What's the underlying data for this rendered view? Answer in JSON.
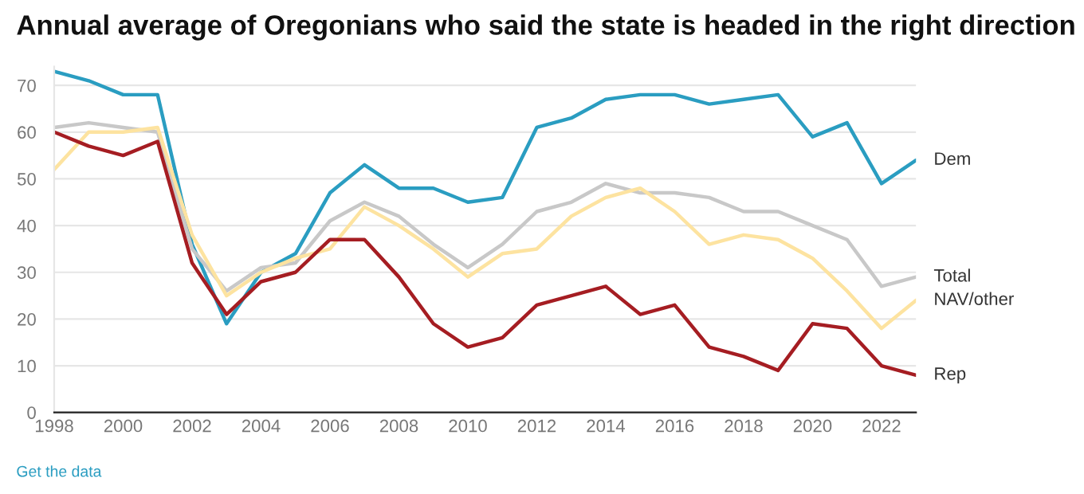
{
  "chart_data": {
    "type": "line",
    "title": "Annual average of Oregonians who said the state is headed in the right direction",
    "x": [
      1998,
      1999,
      2000,
      2001,
      2002,
      2003,
      2004,
      2005,
      2006,
      2007,
      2008,
      2009,
      2010,
      2011,
      2012,
      2013,
      2014,
      2015,
      2016,
      2017,
      2018,
      2019,
      2020,
      2021,
      2022,
      2023
    ],
    "series": [
      {
        "name": "Dem",
        "color": "#2a9dc1",
        "values": [
          73,
          71,
          68,
          68,
          36,
          19,
          30,
          34,
          47,
          53,
          48,
          48,
          45,
          46,
          61,
          63,
          67,
          68,
          68,
          66,
          67,
          68,
          59,
          62,
          49,
          54
        ]
      },
      {
        "name": "Total",
        "color": "#c8c8c8",
        "values": [
          61,
          62,
          61,
          60,
          35,
          26,
          31,
          32,
          41,
          45,
          42,
          36,
          31,
          36,
          43,
          45,
          49,
          47,
          47,
          46,
          43,
          43,
          40,
          37,
          27,
          29
        ]
      },
      {
        "name": "NAV/other",
        "color": "#fde3a0",
        "values": [
          52,
          60,
          60,
          61,
          38,
          25,
          30,
          33,
          35,
          44,
          40,
          35,
          29,
          34,
          35,
          42,
          46,
          48,
          43,
          36,
          38,
          37,
          33,
          26,
          18,
          24
        ]
      },
      {
        "name": "Rep",
        "color": "#a51d22",
        "values": [
          60,
          57,
          55,
          58,
          32,
          21,
          28,
          30,
          37,
          37,
          29,
          19,
          14,
          16,
          23,
          25,
          27,
          21,
          23,
          14,
          12,
          9,
          19,
          18,
          10,
          8
        ]
      }
    ],
    "xlim": [
      1998,
      2023
    ],
    "xticks": [
      1998,
      2000,
      2002,
      2004,
      2006,
      2008,
      2010,
      2012,
      2014,
      2016,
      2018,
      2020,
      2022
    ],
    "ylim": [
      0,
      74
    ],
    "yticks": [
      0,
      10,
      20,
      30,
      40,
      50,
      60,
      70
    ],
    "grid": "y",
    "legend": false,
    "annotations": [
      "Get the data"
    ]
  }
}
